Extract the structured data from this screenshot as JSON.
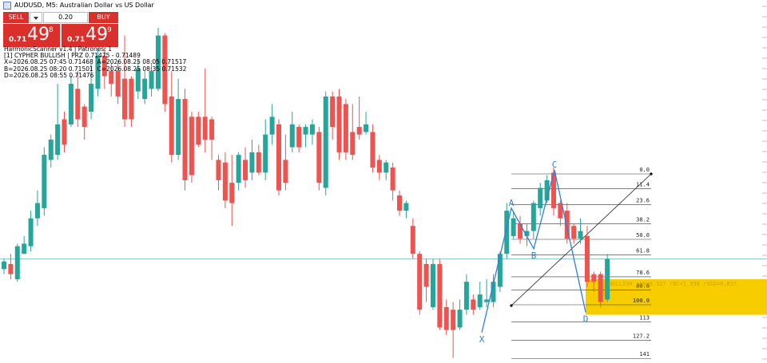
{
  "ui": {
    "window_title": "AUDUSD, M5:  Australian Dollar vs US Dollar",
    "trade_panel": {
      "sell_button": "SELL",
      "buy_button": "BUY",
      "volume": "0.20",
      "sell_price": {
        "prefix": "0.71",
        "big": "49",
        "small": "8"
      },
      "buy_price": {
        "prefix": "0.71",
        "big": "49",
        "small": "9"
      }
    },
    "info_lines": [
      "HarmonicScanner v1.4 | Patrones: 1",
      "[1] CYPHER BULLISH | PRZ 0.71475 - 0.71489",
      "X=2026.08.25 07:45 0.71468  A=2026.08.25 08:05 0.71517",
      "B=2026.08.25 08:20 0.71501  C=2026.08.25 08:35 0.71532",
      "D=2026.08.25 08:55 0.71476"
    ]
  },
  "chart_data": {
    "type": "candlestick",
    "up_color": "#26a69a",
    "down_color": "#ef5350",
    "ylim": [
      0.71456,
      0.71599
    ],
    "ohlc": [
      [
        0.71493,
        0.71497,
        0.71491,
        0.71496
      ],
      [
        0.71495,
        0.71499,
        0.71489,
        0.71491
      ],
      [
        0.71489,
        0.71503,
        0.71488,
        0.71502
      ],
      [
        0.71499,
        0.71506,
        0.71499,
        0.71503
      ],
      [
        0.71502,
        0.71516,
        0.715,
        0.71513
      ],
      [
        0.71513,
        0.71524,
        0.7151,
        0.71519
      ],
      [
        0.71517,
        0.71541,
        0.71514,
        0.71538
      ],
      [
        0.71536,
        0.71546,
        0.71533,
        0.71544
      ],
      [
        0.71538,
        0.71566,
        0.71536,
        0.7155
      ],
      [
        0.71552,
        0.71555,
        0.71539,
        0.71542
      ],
      [
        0.7155,
        0.71569,
        0.71549,
        0.71566
      ],
      [
        0.71564,
        0.71571,
        0.71549,
        0.71552
      ],
      [
        0.71557,
        0.71558,
        0.71544,
        0.71549
      ],
      [
        0.71555,
        0.71574,
        0.71552,
        0.71566
      ],
      [
        0.71564,
        0.7158,
        0.71561,
        0.71577
      ],
      [
        0.71577,
        0.7158,
        0.71564,
        0.71569
      ],
      [
        0.71571,
        0.71574,
        0.71561,
        0.71566
      ],
      [
        0.71571,
        0.71575,
        0.71558,
        0.71561
      ],
      [
        0.71568,
        0.71585,
        0.71549,
        0.71552
      ],
      [
        0.71568,
        0.71569,
        0.71549,
        0.71552
      ],
      [
        0.71563,
        0.71575,
        0.7156,
        0.71572
      ],
      [
        0.7156,
        0.71571,
        0.71558,
        0.71568
      ],
      [
        0.71564,
        0.71574,
        0.71561,
        0.71571
      ],
      [
        0.71564,
        0.71588,
        0.71563,
        0.71585
      ],
      [
        0.71585,
        0.71586,
        0.71555,
        0.71558
      ],
      [
        0.71561,
        0.71571,
        0.71535,
        0.71538
      ],
      [
        0.71538,
        0.71568,
        0.71536,
        0.7156
      ],
      [
        0.7156,
        0.71564,
        0.71524,
        0.71528
      ],
      [
        0.71553,
        0.71555,
        0.71527,
        0.7153
      ],
      [
        0.71553,
        0.71555,
        0.71541,
        0.71542
      ],
      [
        0.71553,
        0.71572,
        0.71539,
        0.71544
      ],
      [
        0.71552,
        0.71553,
        0.71536,
        0.71544
      ],
      [
        0.71536,
        0.71538,
        0.71524,
        0.71528
      ],
      [
        0.71535,
        0.71539,
        0.71517,
        0.7152
      ],
      [
        0.71527,
        0.71538,
        0.7151,
        0.71519
      ],
      [
        0.71527,
        0.71539,
        0.71524,
        0.71538
      ],
      [
        0.71536,
        0.71541,
        0.71525,
        0.71528
      ],
      [
        0.71531,
        0.71544,
        0.71528,
        0.71539
      ],
      [
        0.71539,
        0.71542,
        0.7153,
        0.71531
      ],
      [
        0.71531,
        0.71552,
        0.71528,
        0.71546
      ],
      [
        0.71546,
        0.71558,
        0.71542,
        0.71553
      ],
      [
        0.7155,
        0.71552,
        0.71522,
        0.71524
      ],
      [
        0.71536,
        0.71546,
        0.71524,
        0.71527
      ],
      [
        0.71541,
        0.71555,
        0.71539,
        0.7155
      ],
      [
        0.71549,
        0.7155,
        0.71539,
        0.71541
      ],
      [
        0.71546,
        0.7155,
        0.71541,
        0.71549
      ],
      [
        0.71546,
        0.71552,
        0.71542,
        0.7155
      ],
      [
        0.71547,
        0.71549,
        0.71524,
        0.71527
      ],
      [
        0.71525,
        0.71563,
        0.71522,
        0.71561
      ],
      [
        0.71561,
        0.71563,
        0.71544,
        0.71549
      ],
      [
        0.71561,
        0.71564,
        0.71536,
        0.71539
      ],
      [
        0.71558,
        0.7156,
        0.71536,
        0.71539
      ],
      [
        0.71547,
        0.71558,
        0.71536,
        0.71538
      ],
      [
        0.71549,
        0.71561,
        0.71544,
        0.71546
      ],
      [
        0.71547,
        0.71555,
        0.71546,
        0.7155
      ],
      [
        0.71547,
        0.7155,
        0.71531,
        0.71533
      ],
      [
        0.71536,
        0.71538,
        0.71528,
        0.71531
      ],
      [
        0.71531,
        0.71536,
        0.71528,
        0.71535
      ],
      [
        0.71533,
        0.71535,
        0.7152,
        0.71524
      ],
      [
        0.71522,
        0.71524,
        0.71514,
        0.71516
      ],
      [
        0.71516,
        0.7152,
        0.71513,
        0.71519
      ],
      [
        0.7151,
        0.71513,
        0.71497,
        0.71499
      ],
      [
        0.71499,
        0.715,
        0.71475,
        0.71477
      ],
      [
        0.71495,
        0.71497,
        0.7148,
        0.71486
      ],
      [
        0.71478,
        0.71497,
        0.71477,
        0.71495
      ],
      [
        0.71495,
        0.71497,
        0.71469,
        0.7147
      ],
      [
        0.71478,
        0.71481,
        0.71467,
        0.71469
      ],
      [
        0.71477,
        0.7148,
        0.71458,
        0.71469
      ],
      [
        0.7147,
        0.71481,
        0.71469,
        0.71477
      ],
      [
        0.71477,
        0.71491,
        0.71475,
        0.71488
      ],
      [
        0.71481,
        0.71483,
        0.71475,
        0.71477
      ],
      [
        0.71478,
        0.71488,
        0.71477,
        0.71483
      ],
      [
        0.7148,
        0.71489,
        0.71478,
        0.71481
      ],
      [
        0.7148,
        0.71491,
        0.71478,
        0.71488
      ],
      [
        0.71486,
        0.715,
        0.71484,
        0.71499
      ],
      [
        0.71499,
        0.71519,
        0.71497,
        0.71516
      ],
      [
        0.71506,
        0.71516,
        0.71505,
        0.71513
      ],
      [
        0.71511,
        0.71514,
        0.71503,
        0.71505
      ],
      [
        0.71506,
        0.71511,
        0.71502,
        0.71508
      ],
      [
        0.71508,
        0.7152,
        0.71505,
        0.71519
      ],
      [
        0.71517,
        0.71527,
        0.71514,
        0.71525
      ],
      [
        0.7152,
        0.7153,
        0.71519,
        0.71528
      ],
      [
        0.71531,
        0.71533,
        0.71514,
        0.71517
      ],
      [
        0.71519,
        0.7152,
        0.7151,
        0.71513
      ],
      [
        0.71516,
        0.71519,
        0.71503,
        0.71505
      ],
      [
        0.7151,
        0.71511,
        0.71503,
        0.71505
      ],
      [
        0.71505,
        0.71513,
        0.71503,
        0.71508
      ],
      [
        0.71506,
        0.7151,
        0.71486,
        0.71488
      ],
      [
        0.71491,
        0.71492,
        0.71484,
        0.71488
      ],
      [
        0.71491,
        0.71492,
        0.71478,
        0.7148
      ],
      [
        0.71481,
        0.71499,
        0.7148,
        0.71497
      ]
    ],
    "price_line_color": "#8fc9cc",
    "pattern": {
      "color": "#2f7fd8",
      "prz": [
        0.71475,
        0.71489
      ],
      "prz_color": "#f7cd00",
      "ratios": "BULLISH rAB=0.327  rBC=1.938 rXAD=0.837",
      "points": [
        {
          "name": "X",
          "price": 0.71468
        },
        {
          "name": "A",
          "price": 0.71517
        },
        {
          "name": "B",
          "price": 0.71501
        },
        {
          "name": "C",
          "price": 0.71532
        },
        {
          "name": "D",
          "price": 0.71476
        }
      ]
    },
    "fib_levels": [
      {
        "value": 0,
        "label": "0.0"
      },
      11.4,
      23.6,
      38.2,
      {
        "value": 50,
        "label": "50.0"
      },
      61.8,
      78.6,
      88.6,
      {
        "value": 100,
        "label": "100.0"
      },
      113,
      127.2,
      141
    ]
  }
}
